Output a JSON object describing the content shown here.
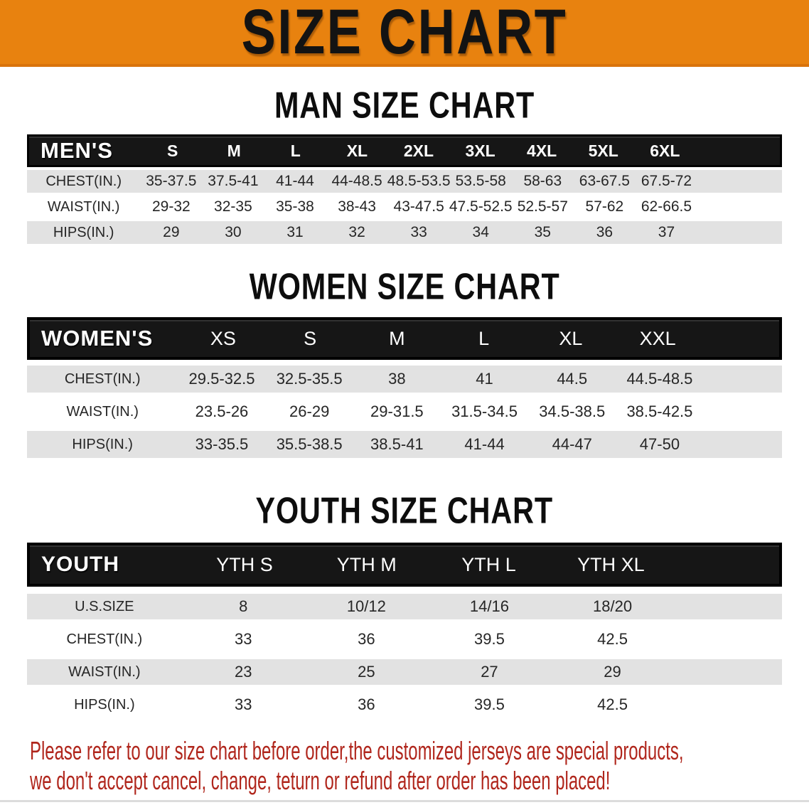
{
  "banner": {
    "title": "SIZE CHART"
  },
  "colors": {
    "banner_bg": "#E8820F",
    "banner_edge": "#D9730B",
    "band_bg": "#161616",
    "row_alt_bg": "#E2E2E2",
    "note_color": "#B0261C"
  },
  "sections": [
    {
      "heading": "MAN SIZE CHART",
      "table": {
        "label": "MEN'S",
        "sizes": [
          "S",
          "M",
          "L",
          "XL",
          "2XL",
          "3XL",
          "4XL",
          "5XL",
          "6XL"
        ],
        "rows": [
          {
            "label": "CHEST(IN.)",
            "values": [
              "35-37.5",
              "37.5-41",
              "41-44",
              "44-48.5",
              "48.5-53.5",
              "53.5-58",
              "58-63",
              "63-67.5",
              "67.5-72"
            ]
          },
          {
            "label": "WAIST(IN.)",
            "values": [
              "29-32",
              "32-35",
              "35-38",
              "38-43",
              "43-47.5",
              "47.5-52.5",
              "52.5-57",
              "57-62",
              "62-66.5"
            ]
          },
          {
            "label": "HIPS(IN.)",
            "values": [
              "29",
              "30",
              "31",
              "32",
              "33",
              "34",
              "35",
              "36",
              "37"
            ]
          }
        ]
      }
    },
    {
      "heading": "WOMEN SIZE CHART",
      "table": {
        "label": "WOMEN'S",
        "sizes": [
          "XS",
          "S",
          "M",
          "L",
          "XL",
          "XXL"
        ],
        "rows": [
          {
            "label": "CHEST(IN.)",
            "values": [
              "29.5-32.5",
              "32.5-35.5",
              "38",
              "41",
              "44.5",
              "44.5-48.5"
            ]
          },
          {
            "label": "WAIST(IN.)",
            "values": [
              "23.5-26",
              "26-29",
              "29-31.5",
              "31.5-34.5",
              "34.5-38.5",
              "38.5-42.5"
            ]
          },
          {
            "label": "HIPS(IN.)",
            "values": [
              "33-35.5",
              "35.5-38.5",
              "38.5-41",
              "41-44",
              "44-47",
              "47-50"
            ]
          }
        ]
      }
    },
    {
      "heading": "YOUTH SIZE CHART",
      "table": {
        "label": "YOUTH",
        "sizes": [
          "YTH S",
          "YTH M",
          "YTH L",
          "YTH XL"
        ],
        "rows": [
          {
            "label": "U.S.SIZE",
            "values": [
              "8",
              "10/12",
              "14/16",
              "18/20"
            ]
          },
          {
            "label": "CHEST(IN.)",
            "values": [
              "33",
              "36",
              "39.5",
              "42.5"
            ]
          },
          {
            "label": "WAIST(IN.)",
            "values": [
              "23",
              "25",
              "27",
              "29"
            ]
          },
          {
            "label": "HIPS(IN.)",
            "values": [
              "33",
              "36",
              "39.5",
              "42.5"
            ]
          }
        ]
      }
    }
  ],
  "note": {
    "line1": "Please refer to our size chart before order,the customized jerseys are special products,",
    "line2": "we don't accept cancel, change, teturn or refund after order has been placed!"
  }
}
